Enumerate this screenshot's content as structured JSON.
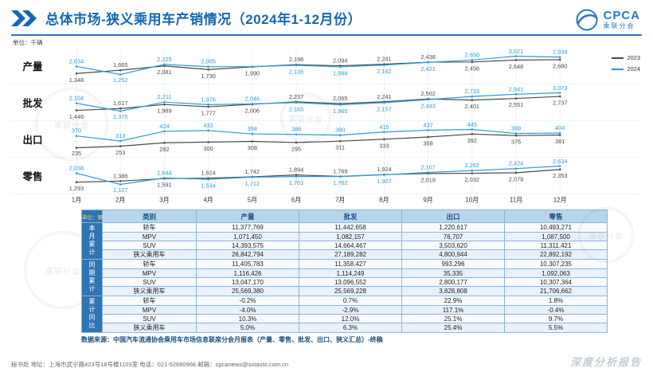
{
  "header": {
    "title": "总体市场-狭义乘用车产销情况（2024年1-12月份）",
    "logo_text": "CPCA",
    "logo_sub": "乘联分会"
  },
  "chart_unit": "单位：千辆",
  "legend": [
    {
      "label": "2023",
      "color": "#4a4a4a"
    },
    {
      "label": "2024",
      "color": "#2b9bd7"
    }
  ],
  "chart_data": {
    "type": "line",
    "categories": [
      "1月",
      "2月",
      "3月",
      "4月",
      "5月",
      "6月",
      "7月",
      "8月",
      "9月",
      "10月",
      "11月",
      "12月"
    ],
    "unit": "千辆",
    "legend_position": "right",
    "charts": [
      {
        "key": "production",
        "label": "产量",
        "series": [
          {
            "name": "2023",
            "color": "#4a4a4a",
            "values": [
              1348,
              1665,
              2081,
              1730,
              1990,
              2196,
              2094,
              2241,
              2438,
              2458,
              2648,
              2680
            ]
          },
          {
            "name": "2024",
            "color": "#2b9bd7",
            "values": [
              2034,
              1252,
              2225,
              2005,
              2016,
              2135,
              1988,
              2162,
              2421,
              2650,
              3021,
              2934
            ],
            "hide_labels": [
              4
            ]
          }
        ]
      },
      {
        "key": "wholesale",
        "label": "批发",
        "series": [
          {
            "name": "2023",
            "color": "#4a4a4a",
            "values": [
              1446,
              1617,
              1989,
              1777,
              2006,
              2237,
              2065,
              2241,
              2502,
              2401,
              2551,
              2737
            ]
          },
          {
            "name": "2024",
            "color": "#2b9bd7",
            "values": [
              2104,
              1375,
              2211,
              1976,
              2046,
              2165,
              1965,
              2157,
              2443,
              2733,
              2941,
              3073
            ]
          }
        ]
      },
      {
        "key": "export",
        "label": "出口",
        "series": [
          {
            "name": "2023",
            "color": "#4a4a4a",
            "values": [
              235,
              253,
              292,
              300,
              308,
              295,
              311,
              333,
              358,
              392,
              375,
              381
            ]
          },
          {
            "name": "2024",
            "color": "#2b9bd7",
            "values": [
              370,
              313,
              424,
              432,
              394,
              388,
              380,
              415,
              437,
              445,
              399,
              404
            ]
          }
        ]
      },
      {
        "key": "retail",
        "label": "零售",
        "series": [
          {
            "name": "2023",
            "color": "#4a4a4a",
            "values": [
              1293,
              1386,
              1591,
              1624,
              1742,
              1894,
              1769,
              1924,
              2019,
              2032,
              2079,
              2353
            ]
          },
          {
            "name": "2024",
            "color": "#2b9bd7",
            "values": [
              2038,
              1107,
              1644,
              1534,
              1712,
              1761,
              1762,
              1907,
              2107,
              2262,
              2424,
              2634
            ]
          }
        ]
      }
    ]
  },
  "table": {
    "unit_label": "单位：辆",
    "columns": [
      "类别",
      "产量",
      "批发",
      "出口",
      "零售"
    ],
    "groups": [
      {
        "label": "本月累计",
        "rows": [
          [
            "轿车",
            "11,377,769",
            "11,442,658",
            "1,220,617",
            "10,493,271"
          ],
          [
            "MPV",
            "1,071,450",
            "1,082,157",
            "76,707",
            "1,087,500"
          ],
          [
            "SUV",
            "14,393,575",
            "14,664,467",
            "3,503,620",
            "11,311,421"
          ],
          [
            "狭义乘用车",
            "26,842,794",
            "27,189,282",
            "4,800,944",
            "22,892,192"
          ]
        ]
      },
      {
        "label": "同期累计",
        "rows": [
          [
            "轿车",
            "11,405,783",
            "11,358,427",
            "993,296",
            "10,307,235"
          ],
          [
            "MPV",
            "1,116,426",
            "1,114,249",
            "35,335",
            "1,092,063"
          ],
          [
            "SUV",
            "13,047,170",
            "13,096,552",
            "2,800,177",
            "10,307,364"
          ],
          [
            "狭义乘用车",
            "25,569,380",
            "25,569,228",
            "3,828,808",
            "21,706,662"
          ]
        ]
      },
      {
        "label": "累计同比",
        "rows": [
          [
            "轿车",
            "-0.2%",
            "0.7%",
            "22.9%",
            "1.8%"
          ],
          [
            "MPV",
            "-4.0%",
            "-2.9%",
            "117.1%",
            "-0.4%"
          ],
          [
            "SUV",
            "10.3%",
            "12.0%",
            "25.1%",
            "9.7%"
          ],
          [
            "狭义乘用车",
            "5.0%",
            "6.3%",
            "25.4%",
            "5.5%"
          ]
        ]
      }
    ]
  },
  "source_note": "数据来源：中国汽车流通协会乘用车市场信息联席分会月报表（产量、零售、批发、出口、狭义汇总）-终稿",
  "footer": {
    "left": "秘书处  地址：上海市武宁路423号18号楼1103室  电话：021-52680968  邮箱：cpcanews@sxtauto.com.cn",
    "right": "深度分析报告"
  }
}
